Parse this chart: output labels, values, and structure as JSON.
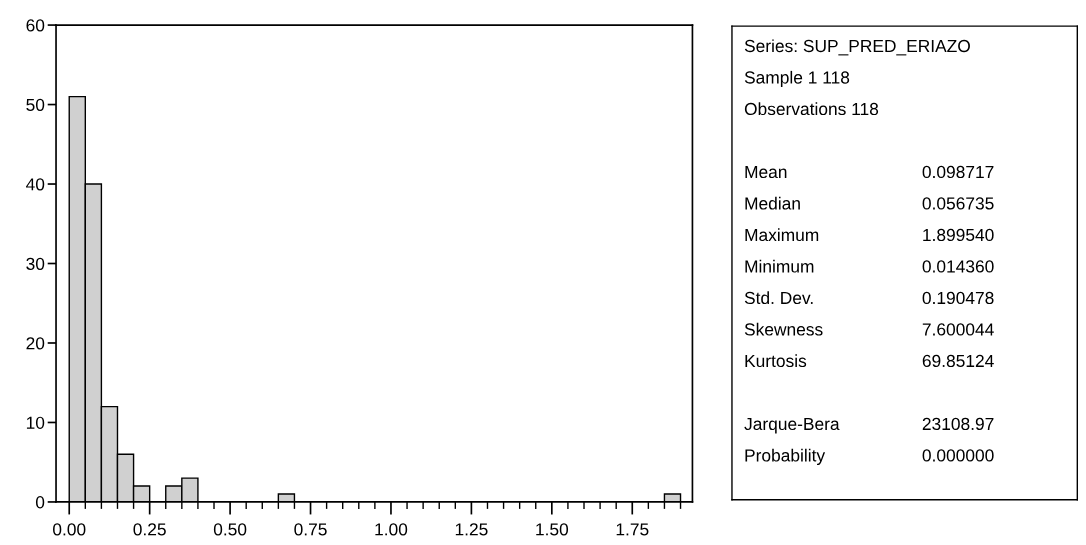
{
  "chart_data": [
    {
      "type": "histogram",
      "color": "#d0d0d0",
      "bins": [
        0,
        0.05,
        0.1,
        0.15,
        0.2,
        0.25,
        0.3,
        0.35,
        0.4,
        0.45,
        0.5,
        0.55,
        0.6,
        0.65,
        0.7,
        0.75,
        0.8,
        0.85,
        0.9,
        0.95,
        1.0,
        1.05,
        1.1,
        1.15,
        1.2,
        1.25,
        1.3,
        1.35,
        1.4,
        1.45,
        1.5,
        1.55,
        1.6,
        1.65,
        1.7,
        1.75,
        1.8,
        1.85,
        1.9
      ],
      "values": [
        51,
        40,
        12,
        6,
        2,
        0,
        2,
        3,
        0,
        0,
        0,
        0,
        0,
        1,
        0,
        0,
        0,
        0,
        0,
        0,
        0,
        0,
        0,
        0,
        0,
        0,
        0,
        0,
        0,
        0,
        0,
        0,
        0,
        0,
        0,
        0,
        0,
        1
      ],
      "xlim": [
        -0.041,
        1.937
      ],
      "ylim": [
        0,
        60
      ],
      "xticks": [
        {
          "value": 0,
          "label": "0.00"
        },
        {
          "value": 0.05,
          "label": null
        },
        {
          "value": 0.1,
          "label": null
        },
        {
          "value": 0.15,
          "label": null
        },
        {
          "value": 0.2,
          "label": null
        },
        {
          "value": 0.25,
          "label": "0.25"
        },
        {
          "value": 0.3,
          "label": null
        },
        {
          "value": 0.35,
          "label": null
        },
        {
          "value": 0.4,
          "label": null
        },
        {
          "value": 0.45,
          "label": null
        },
        {
          "value": 0.5,
          "label": "0.50"
        },
        {
          "value": 0.55,
          "label": null
        },
        {
          "value": 0.6,
          "label": null
        },
        {
          "value": 0.65,
          "label": null
        },
        {
          "value": 0.7,
          "label": null
        },
        {
          "value": 0.75,
          "label": "0.75"
        },
        {
          "value": 0.8,
          "label": null
        },
        {
          "value": 0.85,
          "label": null
        },
        {
          "value": 0.9,
          "label": null
        },
        {
          "value": 0.95,
          "label": null
        },
        {
          "value": 1.0,
          "label": "1.00"
        },
        {
          "value": 1.05,
          "label": null
        },
        {
          "value": 1.1,
          "label": null
        },
        {
          "value": 1.15,
          "label": null
        },
        {
          "value": 1.2,
          "label": null
        },
        {
          "value": 1.25,
          "label": "1.25"
        },
        {
          "value": 1.3,
          "label": null
        },
        {
          "value": 1.35,
          "label": null
        },
        {
          "value": 1.4,
          "label": null
        },
        {
          "value": 1.45,
          "label": null
        },
        {
          "value": 1.5,
          "label": "1.50"
        },
        {
          "value": 1.55,
          "label": null
        },
        {
          "value": 1.6,
          "label": null
        },
        {
          "value": 1.65,
          "label": null
        },
        {
          "value": 1.7,
          "label": null
        },
        {
          "value": 1.75,
          "label": "1.75"
        },
        {
          "value": 1.8,
          "label": null
        },
        {
          "value": 1.85,
          "label": null
        },
        {
          "value": 1.9,
          "label": null
        }
      ],
      "yticks": [
        0,
        10,
        20,
        30,
        40,
        50,
        60
      ],
      "grid": false
    },
    {
      "type": "other",
      "annotations": [
        "Series: SUP_PRED_ERIAZO",
        "Sample 1 118",
        "Observations 118"
      ],
      "categories": [
        "Mean",
        "Median",
        "Maximum",
        "Minimum",
        "Std. Dev.",
        "Skewness",
        "Kurtosis",
        null,
        "Jarque-Bera",
        "Probability"
      ],
      "values": [
        0.098717,
        0.056735,
        1.89954,
        0.01436,
        0.190478,
        7.600044,
        69.85124,
        null,
        23108.97,
        0.0
      ],
      "value_labels": [
        "0.098717",
        "0.056735",
        "1.899540",
        "0.014360",
        "0.190478",
        "7.600044",
        "69.85124",
        null,
        "23108.97",
        "0.000000"
      ]
    }
  ]
}
